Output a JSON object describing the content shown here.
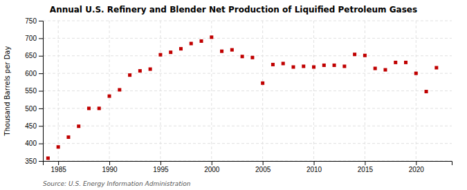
{
  "chart_data": {
    "type": "scatter",
    "title": "Annual U.S. Refinery and Blender Net Production of Liquified Petroleum Gases",
    "y_label": "Thousand Barrels per Day",
    "annotation": "Source: U.S. Energy Information Administration",
    "x": [
      1984,
      1985,
      1986,
      1987,
      1988,
      1989,
      1990,
      1991,
      1992,
      1993,
      1994,
      1995,
      1996,
      1997,
      1998,
      1999,
      2000,
      2001,
      2002,
      2003,
      2004,
      2005,
      2006,
      2007,
      2008,
      2009,
      2010,
      2011,
      2012,
      2013,
      2014,
      2015,
      2016,
      2017,
      2018,
      2019,
      2020,
      2021,
      2022
    ],
    "values": [
      358,
      390,
      418,
      449,
      500,
      500,
      535,
      553,
      595,
      607,
      612,
      653,
      660,
      670,
      685,
      692,
      703,
      663,
      667,
      648,
      645,
      572,
      625,
      628,
      618,
      620,
      618,
      623,
      623,
      620,
      654,
      651,
      614,
      610,
      631,
      631,
      600,
      548,
      616
    ],
    "color": "#c00000",
    "marker": "square",
    "xlim": [
      1983.5,
      2023.5
    ],
    "xticks": [
      1985,
      1990,
      1995,
      2000,
      2005,
      2010,
      2015,
      2020
    ],
    "ylim": [
      350,
      750
    ],
    "yticks": [
      350,
      400,
      450,
      500,
      550,
      600,
      650,
      700,
      750
    ],
    "grid": true
  }
}
